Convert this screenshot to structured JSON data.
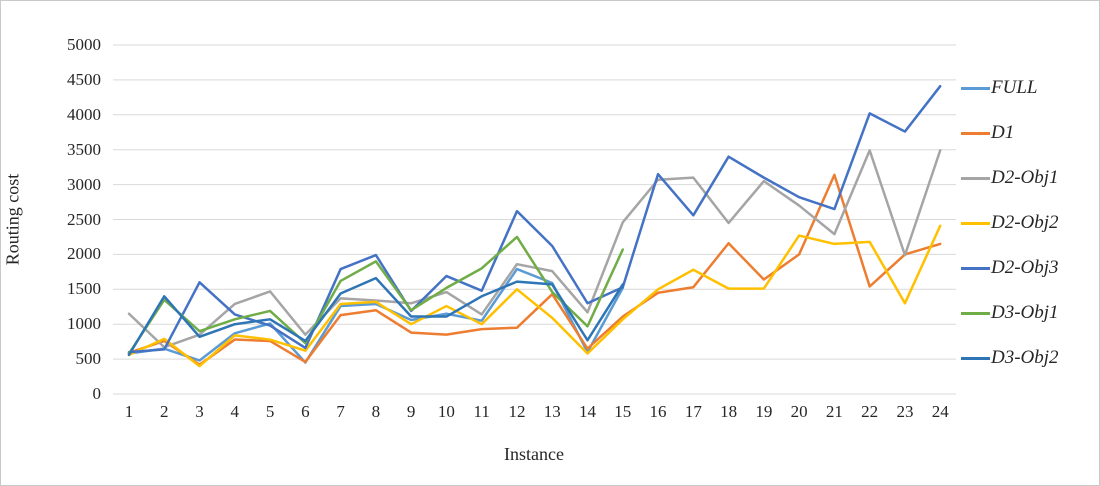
{
  "figure_title": "Routing cost per instance line chart",
  "chart_data": {
    "type": "line",
    "title": "",
    "xlabel": "Instance",
    "ylabel": "Routing cost",
    "x": [
      1,
      2,
      3,
      4,
      5,
      6,
      7,
      8,
      9,
      10,
      11,
      12,
      13,
      14,
      15,
      16,
      17,
      18,
      19,
      20,
      21,
      22,
      23,
      24
    ],
    "ylim": [
      0,
      5000
    ],
    "yticks": [
      0,
      500,
      1000,
      1500,
      2000,
      2500,
      3000,
      3500,
      4000,
      4500,
      5000
    ],
    "grid": true,
    "legend_position": "right",
    "gridline_color": "#d9d9d9",
    "series": [
      {
        "name": "FULL",
        "color": "#5B9BD5",
        "values": [
          580,
          650,
          480,
          870,
          1010,
          450,
          1260,
          1290,
          1060,
          1150,
          1050,
          1790,
          1590,
          600,
          1520
        ]
      },
      {
        "name": "D1",
        "color": "#ED7D31",
        "values": [
          590,
          760,
          420,
          780,
          760,
          460,
          1130,
          1200,
          880,
          850,
          930,
          950,
          1430,
          650,
          1110,
          1450,
          1530,
          2160,
          1640,
          2000,
          3140,
          1540,
          2000,
          2150
        ]
      },
      {
        "name": "D2-Obj1",
        "color": "#A5A5A5",
        "values": [
          1150,
          670,
          850,
          1290,
          1470,
          850,
          1370,
          1340,
          1300,
          1460,
          1140,
          1860,
          1760,
          1170,
          2460,
          3070,
          3100,
          2450,
          3050,
          2700,
          2290,
          3490,
          1990,
          3490
        ]
      },
      {
        "name": "D2-Obj2",
        "color": "#FFC000",
        "values": [
          560,
          790,
          400,
          840,
          780,
          620,
          1290,
          1320,
          1000,
          1260,
          1000,
          1500,
          1090,
          580,
          1070,
          1500,
          1780,
          1510,
          1510,
          2270,
          2150,
          2180,
          1300,
          2410
        ]
      },
      {
        "name": "D2-Obj3",
        "color": "#4472C4",
        "values": [
          600,
          640,
          1600,
          1140,
          980,
          660,
          1790,
          1990,
          1190,
          1690,
          1480,
          2620,
          2120,
          1300,
          1530,
          3150,
          2560,
          3400,
          3100,
          2820,
          2650,
          4020,
          3760,
          4410
        ]
      },
      {
        "name": "D3-Obj1",
        "color": "#70AD47",
        "values": [
          580,
          1350,
          900,
          1070,
          1190,
          730,
          1620,
          1900,
          1200,
          1520,
          1800,
          2250,
          1460,
          970,
          2070
        ]
      },
      {
        "name": "D3-Obj2",
        "color": "#2E75B6",
        "values": [
          560,
          1400,
          820,
          1000,
          1070,
          760,
          1440,
          1660,
          1110,
          1110,
          1400,
          1610,
          1570,
          770,
          1570
        ]
      }
    ]
  }
}
